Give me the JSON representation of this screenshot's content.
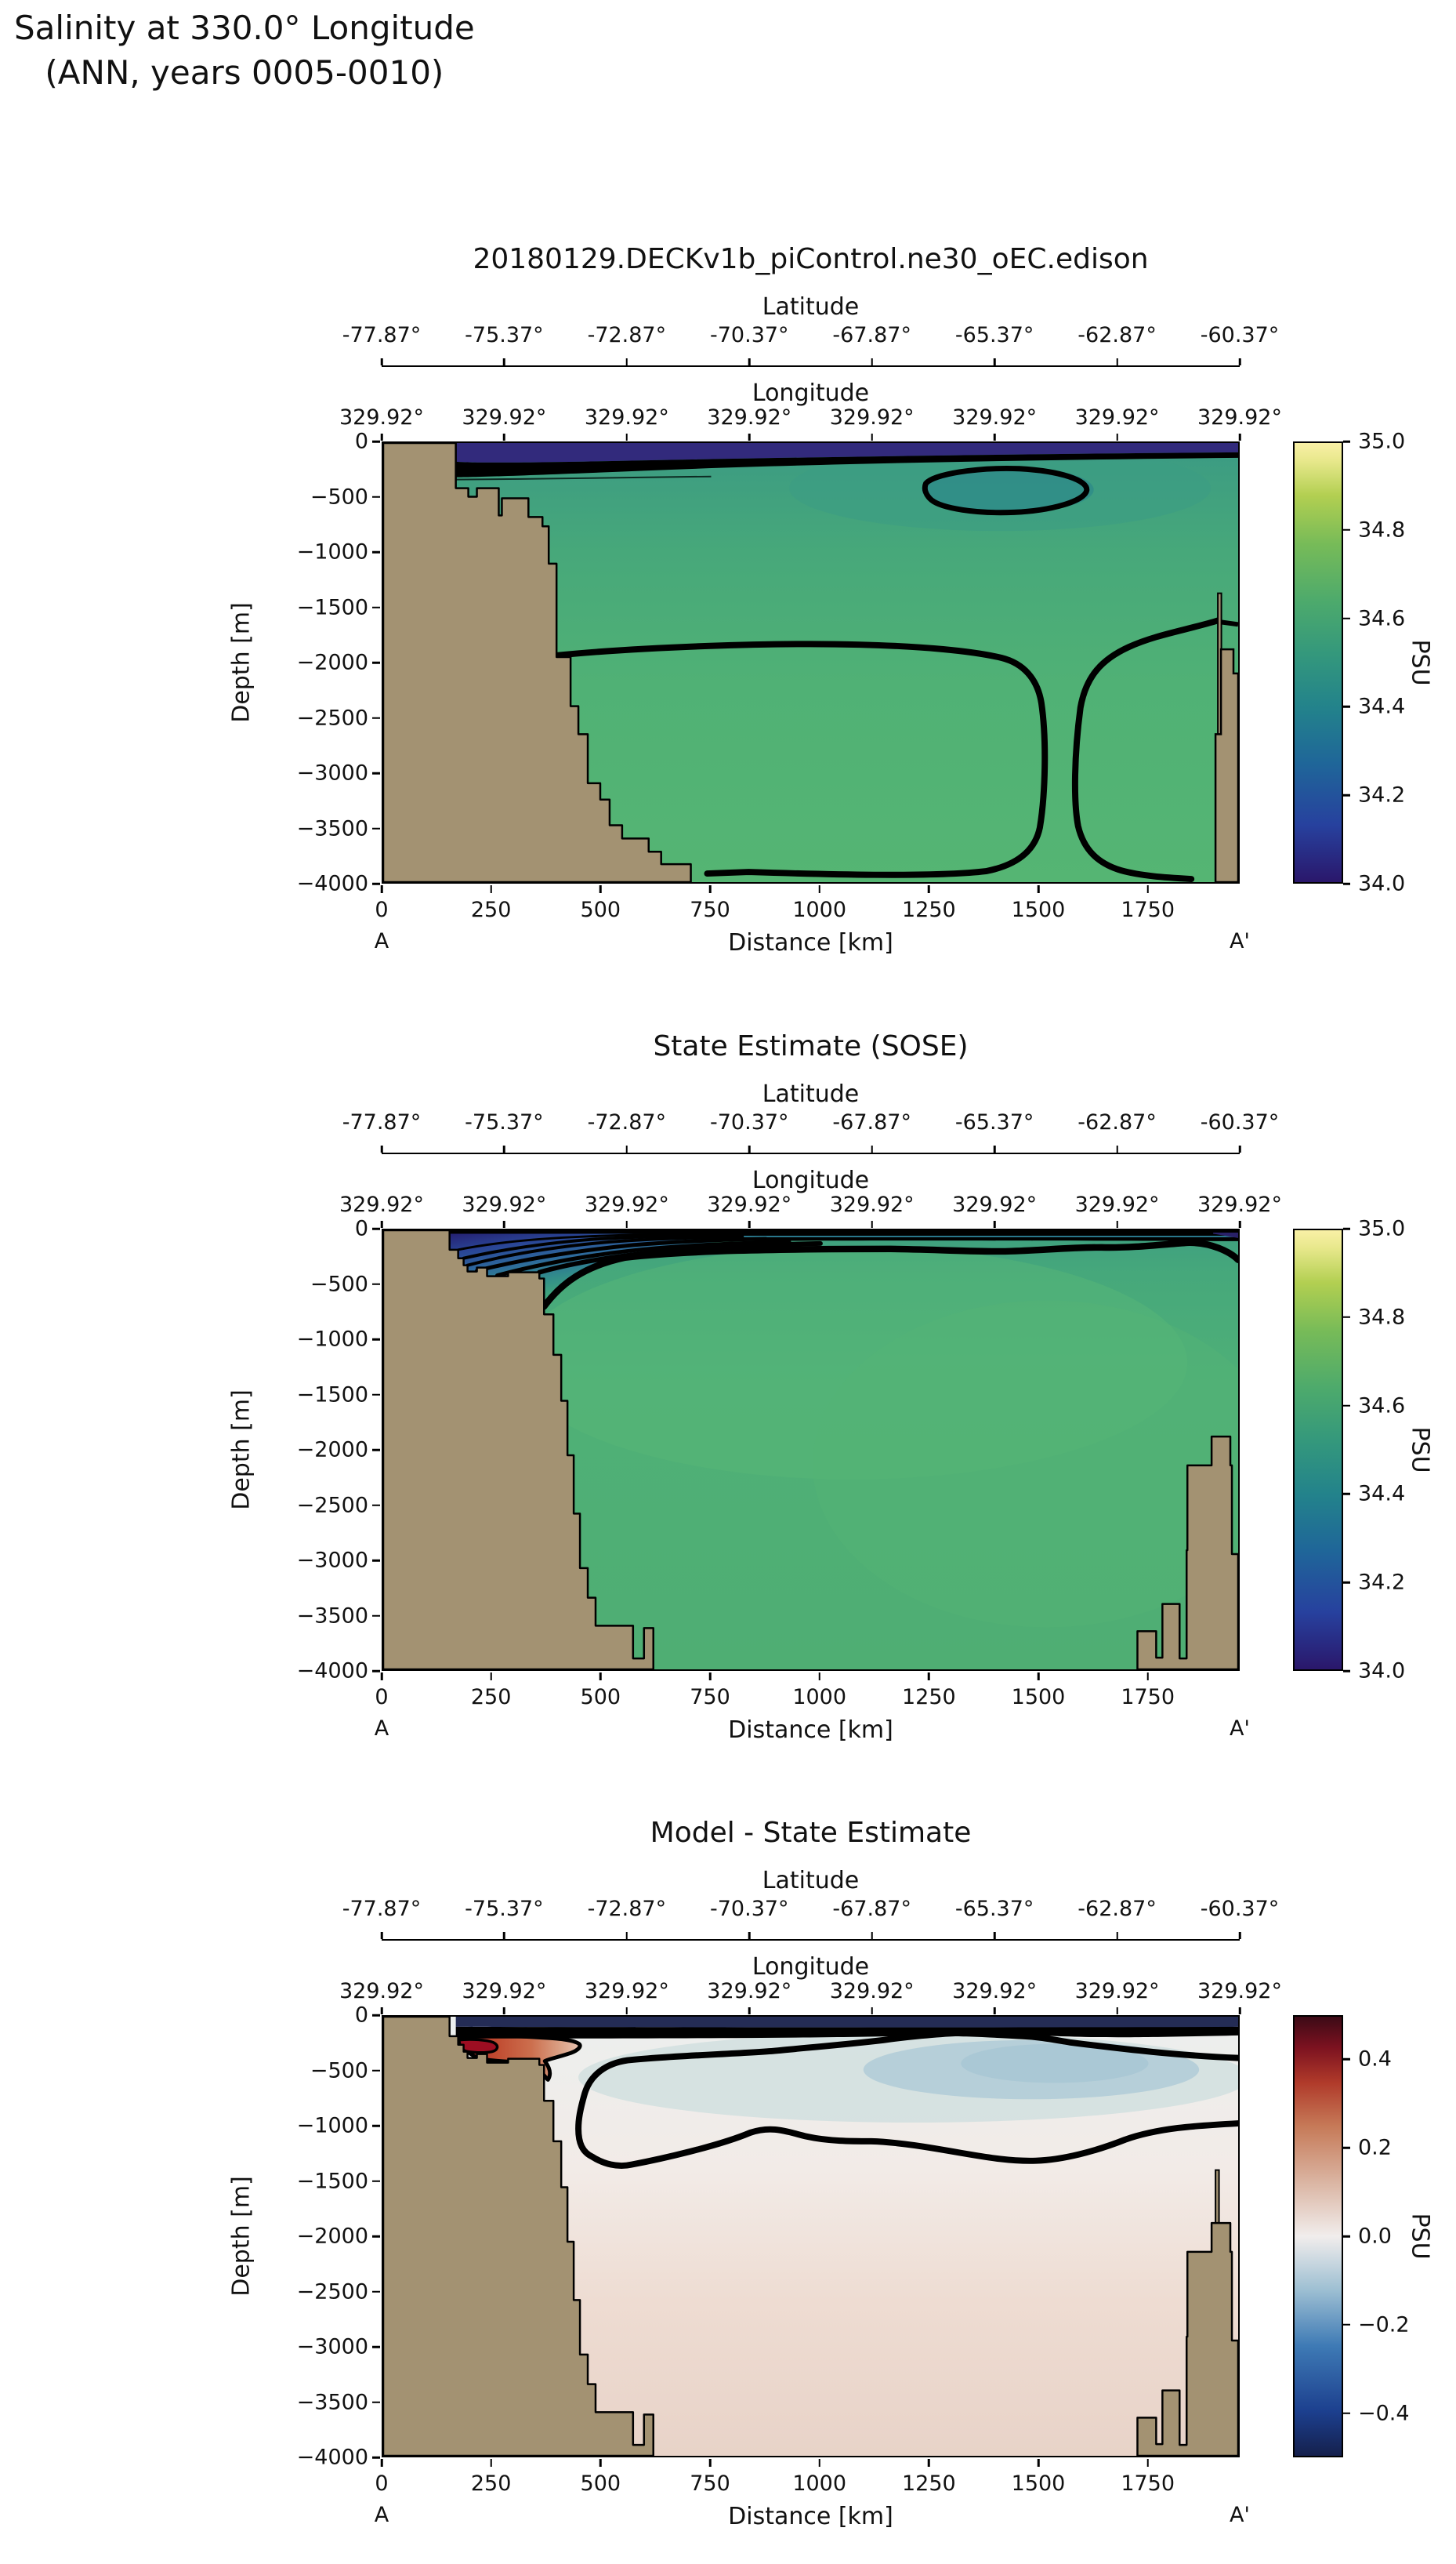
{
  "page": {
    "title_line1": "Salinity at 330.0° Longitude",
    "title_line2": "(ANN, years 0005-0010)"
  },
  "panels": [
    {
      "title": "20180129.DECKv1b_piControl.ne30_oEC.edison",
      "lat": {
        "label": "Latitude",
        "ticks": [
          "-77.87°",
          "-75.37°",
          "-72.87°",
          "-70.37°",
          "-67.87°",
          "-65.37°",
          "-62.87°",
          "-60.37°"
        ]
      },
      "lon": {
        "label": "Longitude",
        "ticks": [
          "329.92°",
          "329.92°",
          "329.92°",
          "329.92°",
          "329.92°",
          "329.92°",
          "329.92°",
          "329.92°"
        ]
      },
      "depth": {
        "label": "Depth [m]",
        "ticks": [
          "0",
          "−500",
          "−1000",
          "−1500",
          "−2000",
          "−2500",
          "−3000",
          "−3500",
          "−4000"
        ]
      },
      "dist": {
        "label": "Distance [km]",
        "ticks": [
          "0",
          "250",
          "500",
          "750",
          "1000",
          "1250",
          "1500",
          "1750"
        ],
        "end_a": "A",
        "end_b": "A'"
      },
      "cbar": {
        "label": "PSU",
        "ticks": [
          "35.0",
          "34.8",
          "34.6",
          "34.4",
          "34.2",
          "34.0"
        ]
      }
    },
    {
      "title": "State Estimate (SOSE)",
      "lat": {
        "label": "Latitude",
        "ticks": [
          "-77.87°",
          "-75.37°",
          "-72.87°",
          "-70.37°",
          "-67.87°",
          "-65.37°",
          "-62.87°",
          "-60.37°"
        ]
      },
      "lon": {
        "label": "Longitude",
        "ticks": [
          "329.92°",
          "329.92°",
          "329.92°",
          "329.92°",
          "329.92°",
          "329.92°",
          "329.92°",
          "329.92°"
        ]
      },
      "depth": {
        "label": "Depth [m]",
        "ticks": [
          "0",
          "−500",
          "−1000",
          "−1500",
          "−2000",
          "−2500",
          "−3000",
          "−3500",
          "−4000"
        ]
      },
      "dist": {
        "label": "Distance [km]",
        "ticks": [
          "0",
          "250",
          "500",
          "750",
          "1000",
          "1250",
          "1500",
          "1750"
        ],
        "end_a": "A",
        "end_b": "A'"
      },
      "cbar": {
        "label": "PSU",
        "ticks": [
          "35.0",
          "34.8",
          "34.6",
          "34.4",
          "34.2",
          "34.0"
        ]
      }
    },
    {
      "title": "Model - State Estimate",
      "lat": {
        "label": "Latitude",
        "ticks": [
          "-77.87°",
          "-75.37°",
          "-72.87°",
          "-70.37°",
          "-67.87°",
          "-65.37°",
          "-62.87°",
          "-60.37°"
        ]
      },
      "lon": {
        "label": "Longitude",
        "ticks": [
          "329.92°",
          "329.92°",
          "329.92°",
          "329.92°",
          "329.92°",
          "329.92°",
          "329.92°",
          "329.92°"
        ]
      },
      "depth": {
        "label": "Depth [m]",
        "ticks": [
          "0",
          "−500",
          "−1000",
          "−1500",
          "−2000",
          "−2500",
          "−3000",
          "−3500",
          "−4000"
        ]
      },
      "dist": {
        "label": "Distance [km]",
        "ticks": [
          "0",
          "250",
          "500",
          "750",
          "1000",
          "1250",
          "1500",
          "1750"
        ],
        "end_a": "A",
        "end_b": "A'"
      },
      "cbar": {
        "label": "PSU",
        "ticks": [
          "0.4",
          "0.2",
          "0.0",
          "−0.2",
          "−0.4"
        ]
      }
    }
  ],
  "chart_data": [
    {
      "type": "heatmap",
      "subtype": "filled_contour_ocean_section",
      "panel": "model",
      "title": "20180129.DECKv1b_piControl.ne30_oEC.edison",
      "xlabel": "Distance [km]",
      "ylabel": "Depth [m]",
      "x_range_km": [
        0,
        1960
      ],
      "x_ticks_km": [
        0,
        250,
        500,
        750,
        1000,
        1250,
        1500,
        1750
      ],
      "y_range_m": [
        -4000,
        0
      ],
      "y_ticks_m": [
        0,
        -500,
        -1000,
        -1500,
        -2000,
        -2500,
        -3000,
        -3500,
        -4000
      ],
      "section_endpoints": [
        "A",
        "A'"
      ],
      "latitude_ticks_deg": [
        -77.87,
        -75.37,
        -72.87,
        -70.37,
        -67.87,
        -65.37,
        -62.87,
        -60.37
      ],
      "longitude_ticks_deg": [
        329.92,
        329.92,
        329.92,
        329.92,
        329.92,
        329.92,
        329.92,
        329.92
      ],
      "colorbar": {
        "label": "PSU",
        "min": 34.0,
        "max": 35.0,
        "ticks": [
          35.0,
          34.8,
          34.6,
          34.4,
          34.2,
          34.0
        ],
        "colormap": "haline-like (indigo → blue → teal → green → pale yellow)",
        "stops": [
          "#2a176b",
          "#27419e",
          "#1f6699",
          "#23838b",
          "#34987c",
          "#4daa6c",
          "#77bb58",
          "#b2cf51",
          "#f9f0a6"
        ]
      },
      "field_values_psu": {
        "surface_layer_0_150m": "34.0–34.3 (dark indigo band)",
        "interior_200_1800m": "34.55–34.65",
        "subsurface_minimum": "closed contour ~34.45 centered near 1430 km, 250–620 m depth",
        "deep_water_below_1900m": "closed contour region ~34.65–34.70 over 700–1250 km and near 1600–1900 km"
      },
      "land_mask_color": "#a39272",
      "bathymetry_profile_km_vs_m": [
        [
          0,
          0
        ],
        [
          165,
          0
        ],
        [
          165,
          -410
        ],
        [
          265,
          -500
        ],
        [
          335,
          -675
        ],
        [
          365,
          -745
        ],
        [
          380,
          -1100
        ],
        [
          395,
          -1950
        ],
        [
          430,
          -2400
        ],
        [
          450,
          -2650
        ],
        [
          470,
          -3100
        ],
        [
          520,
          -3480
        ],
        [
          610,
          -3600
        ],
        [
          640,
          -3720
        ],
        [
          705,
          -3840
        ],
        [
          705,
          -4000
        ],
        [
          1905,
          -4000
        ],
        [
          1905,
          -2650
        ],
        [
          1920,
          -2100
        ],
        [
          1915,
          -1370
        ],
        [
          1960,
          -1950
        ]
      ]
    },
    {
      "type": "heatmap",
      "subtype": "filled_contour_ocean_section",
      "panel": "state_estimate",
      "title": "State Estimate (SOSE)",
      "xlabel": "Distance [km]",
      "ylabel": "Depth [m]",
      "x_range_km": [
        0,
        1960
      ],
      "x_ticks_km": [
        0,
        250,
        500,
        750,
        1000,
        1250,
        1500,
        1750
      ],
      "y_range_m": [
        -4000,
        0
      ],
      "y_ticks_m": [
        0,
        -500,
        -1000,
        -1500,
        -2000,
        -2500,
        -3000,
        -3500,
        -4000
      ],
      "section_endpoints": [
        "A",
        "A'"
      ],
      "latitude_ticks_deg": [
        -77.87,
        -75.37,
        -72.87,
        -70.37,
        -67.87,
        -65.37,
        -62.87,
        -60.37
      ],
      "longitude_ticks_deg": [
        329.92,
        329.92,
        329.92,
        329.92,
        329.92,
        329.92,
        329.92,
        329.92
      ],
      "colorbar": {
        "label": "PSU",
        "min": 34.0,
        "max": 35.0,
        "ticks": [
          35.0,
          34.8,
          34.6,
          34.4,
          34.2,
          34.0
        ],
        "colormap": "haline-like (indigo → blue → teal → green → pale yellow)",
        "stops": [
          "#2a176b",
          "#27419e",
          "#1f6699",
          "#23838b",
          "#34987c",
          "#4daa6c",
          "#77bb58",
          "#b2cf51",
          "#f9f0a6"
        ]
      },
      "field_values_psu": {
        "surface_layer_0_100m": "34.0–34.2 (contours merged into black band)",
        "shelf_corner_fan": "fan of ~7 contours 34.1–34.6 between 150–800 km above 800 m",
        "interior": "uniform 34.6–34.7"
      },
      "land_mask_color": "#a39272",
      "bathymetry_profile_km_vs_m": [
        [
          0,
          0
        ],
        [
          152,
          0
        ],
        [
          152,
          -177
        ],
        [
          172,
          -258
        ],
        [
          193,
          -316
        ],
        [
          215,
          -373
        ],
        [
          238,
          -339
        ],
        [
          261,
          -420
        ],
        [
          286,
          -385
        ],
        [
          358,
          -442
        ],
        [
          369,
          -765
        ],
        [
          390,
          -1134
        ],
        [
          408,
          -1550
        ],
        [
          422,
          -2050
        ],
        [
          437,
          -2580
        ],
        [
          451,
          -3080
        ],
        [
          469,
          -3350
        ],
        [
          487,
          -3600
        ],
        [
          573,
          -3600
        ],
        [
          573,
          -3900
        ],
        [
          619,
          -3620
        ],
        [
          619,
          -4000
        ],
        [
          1729,
          -4000
        ],
        [
          1729,
          -3652
        ],
        [
          1772,
          -3893
        ],
        [
          1786,
          -3404
        ],
        [
          1826,
          -3900
        ],
        [
          1844,
          -2915
        ],
        [
          1899,
          -2141
        ],
        [
          1899,
          -1880
        ],
        [
          1942,
          -1880
        ],
        [
          1942,
          -2950
        ],
        [
          1960,
          -2950
        ]
      ]
    },
    {
      "type": "heatmap",
      "subtype": "filled_contour_difference_section",
      "panel": "model_minus_state_estimate",
      "title": "Model - State Estimate",
      "xlabel": "Distance [km]",
      "ylabel": "Depth [m]",
      "x_range_km": [
        0,
        1960
      ],
      "x_ticks_km": [
        0,
        250,
        500,
        750,
        1000,
        1250,
        1500,
        1750
      ],
      "y_range_m": [
        -4000,
        0
      ],
      "y_ticks_m": [
        0,
        -500,
        -1000,
        -1500,
        -2000,
        -2500,
        -3000,
        -3500,
        -4000
      ],
      "section_endpoints": [
        "A",
        "A'"
      ],
      "latitude_ticks_deg": [
        -77.87,
        -75.37,
        -72.87,
        -70.37,
        -67.87,
        -65.37,
        -62.87,
        -60.37
      ],
      "longitude_ticks_deg": [
        329.92,
        329.92,
        329.92,
        329.92,
        329.92,
        329.92,
        329.92,
        329.92
      ],
      "colorbar": {
        "label": "PSU",
        "min": -0.5,
        "max": 0.5,
        "ticks": [
          0.4,
          0.2,
          0.0,
          -0.2,
          -0.4
        ],
        "colormap": "balance-like diverging (dark navy → blue → white → red → dark maroon)",
        "stops": [
          "#15204c",
          "#1c3f8e",
          "#3e7ab5",
          "#9fc0d3",
          "#f1edec",
          "#dbb6a4",
          "#c67a58",
          "#b03a2a",
          "#7c1220",
          "#3c0a16"
        ]
      },
      "field_values_psu": {
        "surface_band_0_100m": "≤ −0.45 (model much fresher; dark navy band)",
        "shelf_blob_180_550m_150_480km": "+0.2 to +0.5 (red patch, dark-red core ~+0.5 near 200 km, 300 m)",
        "intermediate_200_1300m": "−0.05 to −0.15 (pale blue, bluest near 1450 km, 400–650 m)",
        "deep_below_1500m": "+0.02 to +0.1 (pale pink)",
        "zero_contour": "closed loop from ~(550 km, 400 m) under the surface band (pinch at ~1300 km) down to ~1400 m, exiting right edge near 700 and 1750 m"
      },
      "land_mask_color": "#a39272",
      "bathymetry_profile_km_vs_m": "same as state_estimate panel (SOSE grid)"
    }
  ]
}
